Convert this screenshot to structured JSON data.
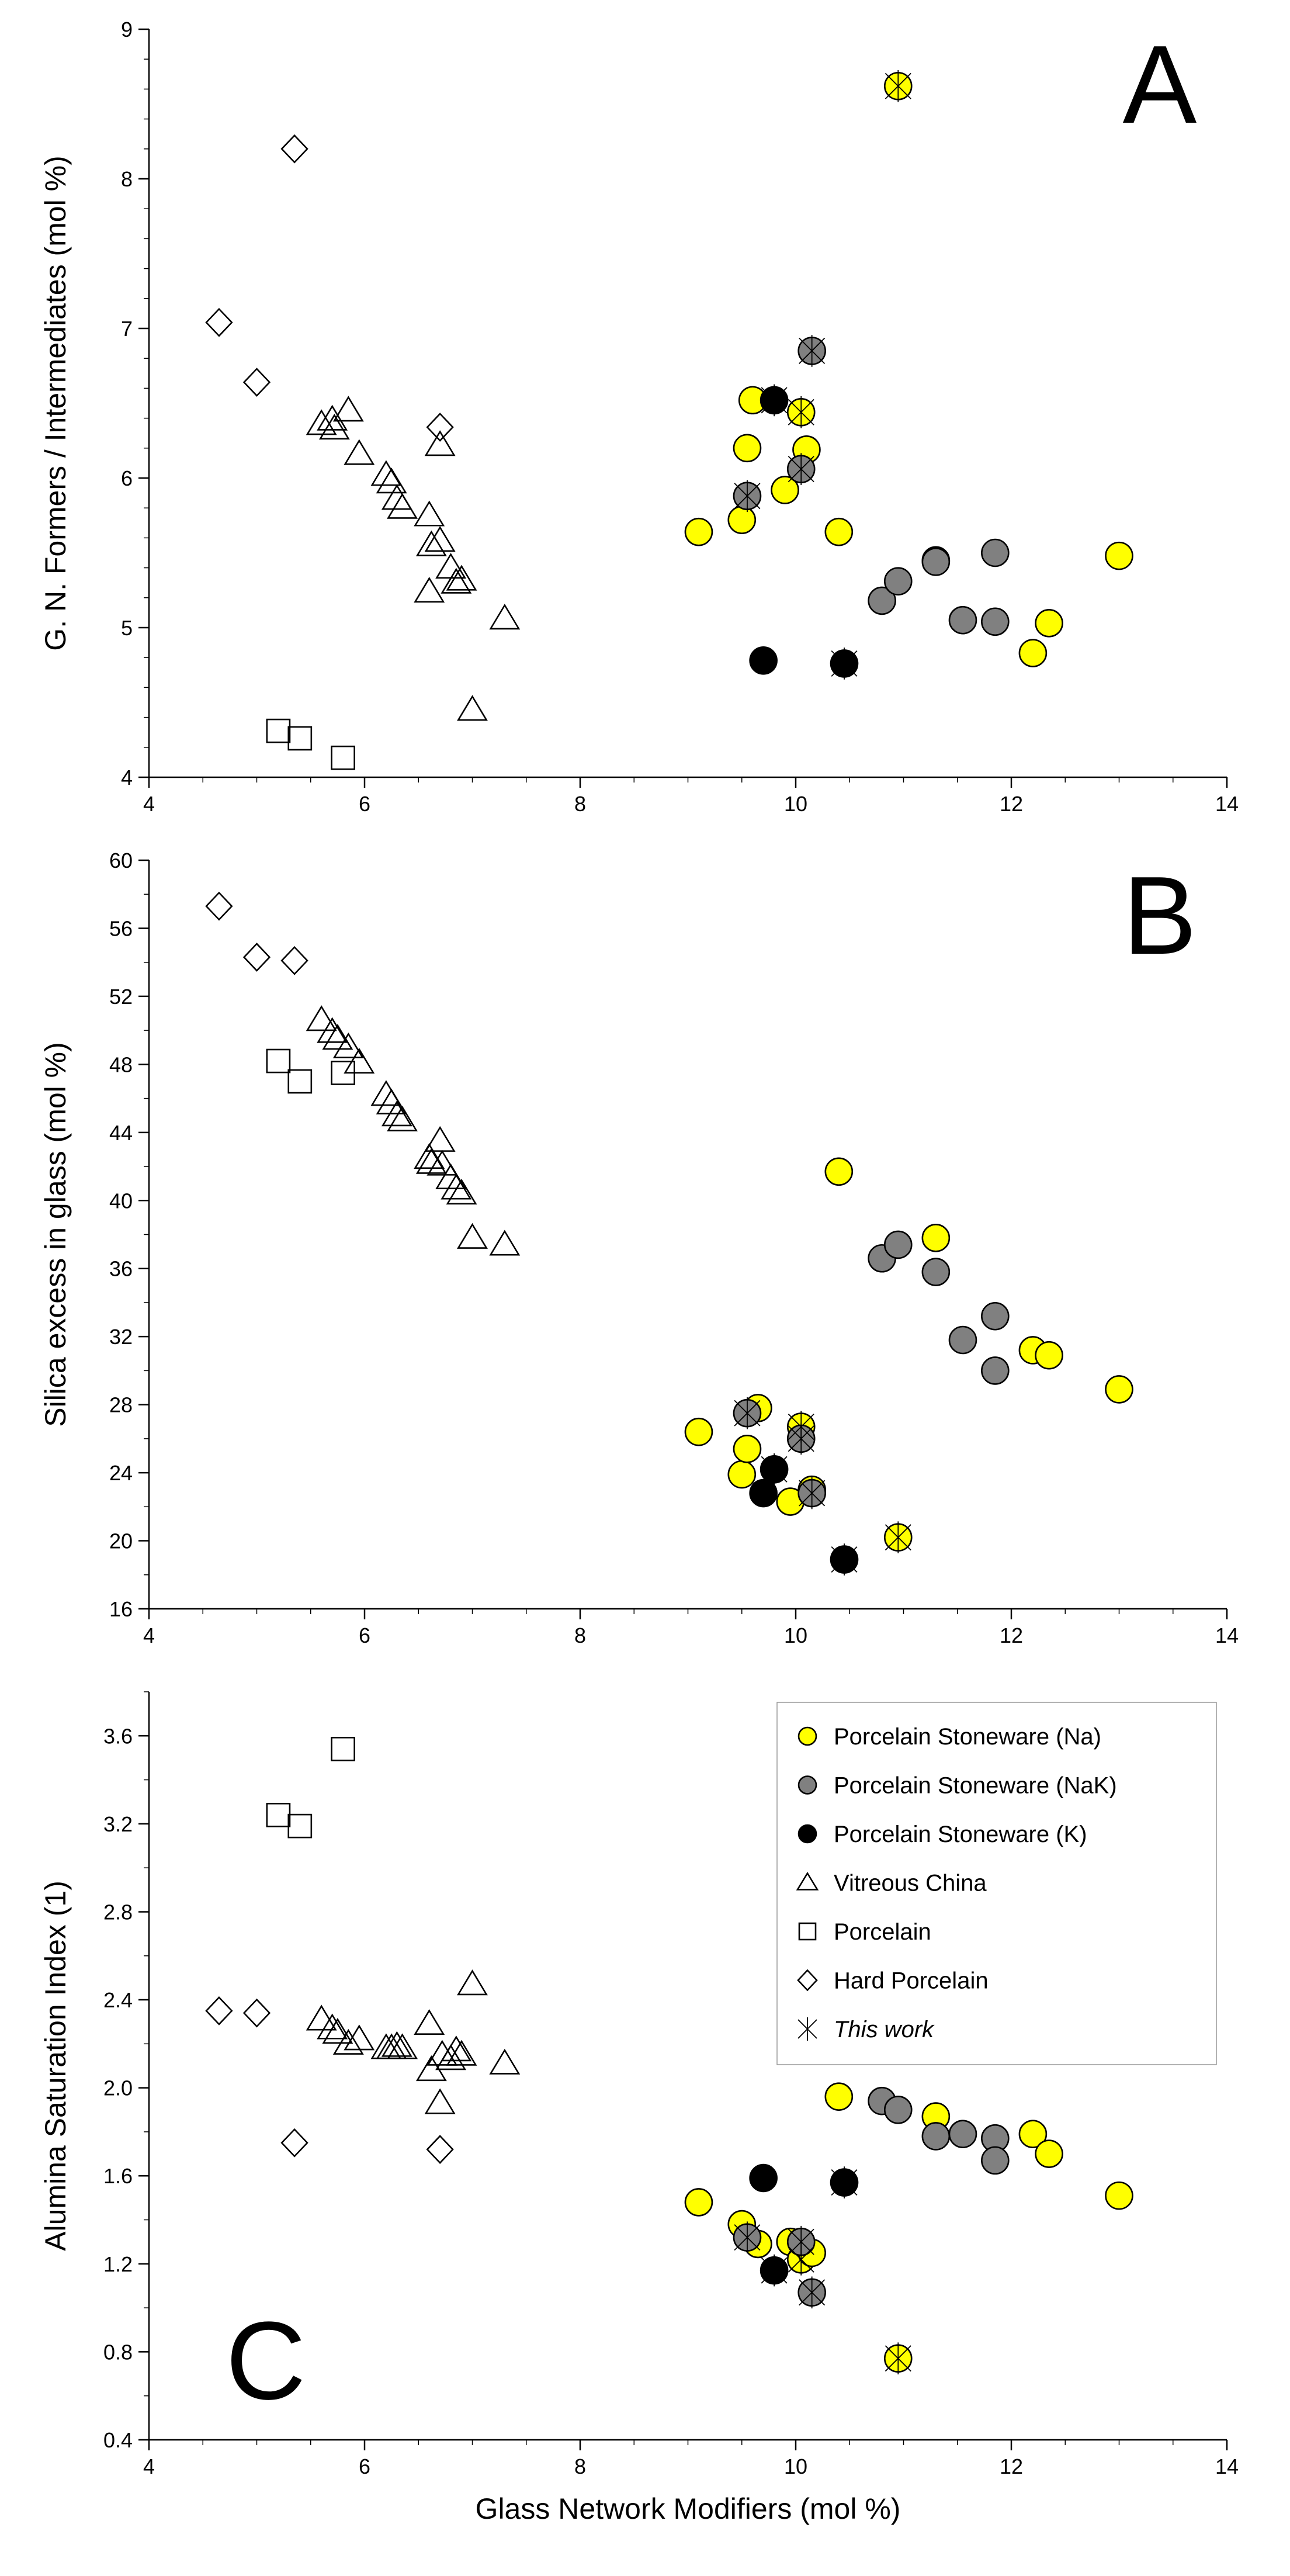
{
  "colors": {
    "porcelain_stoneware_na": "#ffff00",
    "porcelain_stoneware_nak": "#808080",
    "porcelain_stoneware_k": "#000000",
    "hollow": "#ffffff",
    "axis": "#000000"
  },
  "chart_data": [
    {
      "type": "scatter",
      "panel_letter": "A",
      "ylabel": "G. N. Formers / Intermediates (mol %)",
      "xlabel": "",
      "xlim": [
        4,
        14
      ],
      "ylim": [
        4,
        9
      ],
      "x_ticks": [
        "4",
        "6",
        "8",
        "10",
        "12",
        "14"
      ],
      "y_ticks": [
        "4",
        "5",
        "6",
        "7",
        "8",
        "9"
      ],
      "y_minor_step": 0.2,
      "series": [
        {
          "name": "Porcelain Stoneware (Na)",
          "marker": "circle",
          "fill": "#ffff00",
          "points": [
            [
              9.1,
              5.64
            ],
            [
              9.5,
              5.72
            ],
            [
              9.55,
              6.2
            ],
            [
              9.6,
              6.52
            ],
            [
              9.9,
              5.92
            ],
            [
              10.05,
              6.44
            ],
            [
              10.1,
              6.19
            ],
            [
              10.4,
              5.64
            ],
            [
              10.95,
              8.62
            ],
            [
              11.3,
              5.45
            ],
            [
              12.2,
              4.83
            ],
            [
              12.35,
              5.03
            ],
            [
              13.0,
              5.48
            ]
          ]
        },
        {
          "name": "Porcelain Stoneware (NaK)",
          "marker": "circle",
          "fill": "#808080",
          "points": [
            [
              9.55,
              5.88
            ],
            [
              10.05,
              6.06
            ],
            [
              10.15,
              6.85
            ],
            [
              10.8,
              5.18
            ],
            [
              10.95,
              5.31
            ],
            [
              11.3,
              5.44
            ],
            [
              11.55,
              5.05
            ],
            [
              11.85,
              5.04
            ],
            [
              11.85,
              5.5
            ]
          ]
        },
        {
          "name": "Porcelain Stoneware (K)",
          "marker": "circle",
          "fill": "#000000",
          "points": [
            [
              9.7,
              4.78
            ],
            [
              9.8,
              6.52
            ],
            [
              10.45,
              4.76
            ]
          ]
        },
        {
          "name": "Vitreous China",
          "marker": "triangle",
          "fill": "#ffffff",
          "points": [
            [
              5.6,
              6.36
            ],
            [
              5.7,
              6.39
            ],
            [
              5.72,
              6.33
            ],
            [
              5.85,
              6.45
            ],
            [
              5.95,
              6.16
            ],
            [
              6.2,
              6.02
            ],
            [
              6.25,
              5.97
            ],
            [
              6.3,
              5.86
            ],
            [
              6.35,
              5.8
            ],
            [
              6.6,
              5.24
            ],
            [
              6.6,
              5.75
            ],
            [
              6.62,
              5.55
            ],
            [
              6.7,
              6.22
            ],
            [
              6.7,
              5.58
            ],
            [
              6.8,
              5.4
            ],
            [
              6.85,
              5.3
            ],
            [
              6.9,
              5.32
            ],
            [
              7.0,
              4.45
            ],
            [
              7.3,
              5.06
            ]
          ]
        },
        {
          "name": "Porcelain",
          "marker": "square",
          "fill": "#ffffff",
          "points": [
            [
              5.2,
              4.31
            ],
            [
              5.4,
              4.26
            ],
            [
              5.8,
              4.13
            ]
          ]
        },
        {
          "name": "Hard Porcelain",
          "marker": "diamond",
          "fill": "#ffffff",
          "points": [
            [
              4.65,
              7.04
            ],
            [
              5.0,
              6.64
            ],
            [
              5.35,
              8.2
            ],
            [
              6.7,
              6.34
            ]
          ]
        },
        {
          "name": "This work",
          "marker": "star",
          "points": [
            [
              9.55,
              5.88
            ],
            [
              10.05,
              6.06
            ],
            [
              10.15,
              6.85
            ],
            [
              10.05,
              6.44
            ],
            [
              10.95,
              8.62
            ],
            [
              10.45,
              4.76
            ],
            [
              9.8,
              6.52
            ]
          ]
        }
      ]
    },
    {
      "type": "scatter",
      "panel_letter": "B",
      "ylabel": "Silica excess in glass (mol %)",
      "xlabel": "",
      "xlim": [
        4,
        14
      ],
      "ylim": [
        16,
        60
      ],
      "x_ticks": [
        "4",
        "6",
        "8",
        "10",
        "12",
        "14"
      ],
      "y_ticks": [
        "16",
        "20",
        "24",
        "28",
        "32",
        "36",
        "40",
        "44",
        "48",
        "52",
        "56",
        "60"
      ],
      "y_minor_step": 2,
      "series": [
        {
          "name": "Porcelain Stoneware (Na)",
          "marker": "circle",
          "fill": "#ffff00",
          "points": [
            [
              9.1,
              26.4
            ],
            [
              9.5,
              23.9
            ],
            [
              9.55,
              25.4
            ],
            [
              9.65,
              27.8
            ],
            [
              9.95,
              22.3
            ],
            [
              10.05,
              26.7
            ],
            [
              10.15,
              23.0
            ],
            [
              10.4,
              41.7
            ],
            [
              10.95,
              20.2
            ],
            [
              11.3,
              37.8
            ],
            [
              12.2,
              31.2
            ],
            [
              12.35,
              30.9
            ],
            [
              13.0,
              28.9
            ]
          ]
        },
        {
          "name": "Porcelain Stoneware (NaK)",
          "marker": "circle",
          "fill": "#808080",
          "points": [
            [
              9.55,
              27.5
            ],
            [
              10.05,
              26.0
            ],
            [
              10.15,
              22.8
            ],
            [
              10.8,
              36.6
            ],
            [
              10.95,
              37.4
            ],
            [
              11.3,
              35.8
            ],
            [
              11.55,
              31.8
            ],
            [
              11.85,
              30.0
            ],
            [
              11.85,
              33.2
            ]
          ]
        },
        {
          "name": "Porcelain Stoneware (K)",
          "marker": "circle",
          "fill": "#000000",
          "points": [
            [
              9.7,
              22.8
            ],
            [
              9.8,
              24.2
            ],
            [
              10.45,
              18.9
            ]
          ]
        },
        {
          "name": "Vitreous China",
          "marker": "triangle",
          "fill": "#ffffff",
          "points": [
            [
              5.6,
              50.6
            ],
            [
              5.7,
              49.9
            ],
            [
              5.75,
              49.5
            ],
            [
              5.85,
              49.0
            ],
            [
              5.95,
              48.1
            ],
            [
              6.2,
              46.2
            ],
            [
              6.25,
              45.7
            ],
            [
              6.3,
              45.0
            ],
            [
              6.35,
              44.7
            ],
            [
              6.6,
              42.5
            ],
            [
              6.62,
              42.2
            ],
            [
              6.7,
              43.5
            ],
            [
              6.72,
              42.1
            ],
            [
              6.8,
              41.3
            ],
            [
              6.85,
              40.7
            ],
            [
              6.9,
              40.4
            ],
            [
              7.0,
              37.8
            ],
            [
              7.3,
              37.4
            ]
          ]
        },
        {
          "name": "Porcelain",
          "marker": "square",
          "fill": "#ffffff",
          "points": [
            [
              5.2,
              48.2
            ],
            [
              5.4,
              47.0
            ],
            [
              5.8,
              47.5
            ]
          ]
        },
        {
          "name": "Hard Porcelain",
          "marker": "diamond",
          "fill": "#ffffff",
          "points": [
            [
              4.65,
              57.3
            ],
            [
              5.0,
              54.3
            ],
            [
              5.35,
              54.1
            ]
          ]
        },
        {
          "name": "This work",
          "marker": "star",
          "points": [
            [
              9.55,
              27.5
            ],
            [
              10.05,
              26.0
            ],
            [
              10.15,
              22.8
            ],
            [
              10.05,
              26.7
            ],
            [
              10.95,
              20.2
            ],
            [
              10.45,
              18.9
            ],
            [
              9.8,
              24.2
            ]
          ]
        }
      ]
    },
    {
      "type": "scatter",
      "panel_letter": "C",
      "ylabel": "Alumina Saturation Index (1)",
      "xlabel": "Glass Network Modifiers (mol %)",
      "xlim": [
        4,
        14
      ],
      "ylim": [
        0.4,
        3.8
      ],
      "x_ticks": [
        "4",
        "6",
        "8",
        "10",
        "12",
        "14"
      ],
      "y_ticks": [
        "0.4",
        "0.8",
        "1.2",
        "1.6",
        "2.0",
        "2.4",
        "2.8",
        "3.2",
        "3.6"
      ],
      "y_ticks_values": [
        0.4,
        0.8,
        1.2,
        1.6,
        2.0,
        2.4,
        2.8,
        3.2,
        3.6
      ],
      "y_minor_step": 0.2,
      "legend": {
        "position": "top-right",
        "entries": [
          {
            "label": "Porcelain Stoneware (Na)",
            "marker": "circle",
            "fill": "#ffff00"
          },
          {
            "label": "Porcelain Stoneware (NaK)",
            "marker": "circle",
            "fill": "#808080"
          },
          {
            "label": "Porcelain Stoneware (K)",
            "marker": "circle",
            "fill": "#000000"
          },
          {
            "label": "Vitreous China",
            "marker": "triangle",
            "fill": "#ffffff"
          },
          {
            "label": "Porcelain",
            "marker": "square",
            "fill": "#ffffff"
          },
          {
            "label": "Hard Porcelain",
            "marker": "diamond",
            "fill": "#ffffff"
          },
          {
            "label": "This work",
            "marker": "star",
            "fill": "none",
            "italic": true
          }
        ]
      },
      "series": [
        {
          "name": "Porcelain Stoneware (Na)",
          "marker": "circle",
          "fill": "#ffff00",
          "points": [
            [
              9.1,
              1.48
            ],
            [
              9.5,
              1.38
            ],
            [
              9.65,
              1.29
            ],
            [
              9.95,
              1.3
            ],
            [
              10.05,
              1.22
            ],
            [
              10.15,
              1.25
            ],
            [
              10.4,
              1.96
            ],
            [
              10.95,
              0.77
            ],
            [
              11.3,
              1.87
            ],
            [
              12.2,
              1.79
            ],
            [
              12.35,
              1.7
            ],
            [
              13.0,
              1.51
            ]
          ]
        },
        {
          "name": "Porcelain Stoneware (NaK)",
          "marker": "circle",
          "fill": "#808080",
          "points": [
            [
              9.55,
              1.32
            ],
            [
              10.05,
              1.3
            ],
            [
              10.15,
              1.07
            ],
            [
              10.8,
              1.94
            ],
            [
              10.95,
              1.9
            ],
            [
              11.3,
              1.78
            ],
            [
              11.55,
              1.79
            ],
            [
              11.85,
              1.77
            ],
            [
              11.85,
              1.67
            ]
          ]
        },
        {
          "name": "Porcelain Stoneware (K)",
          "marker": "circle",
          "fill": "#000000",
          "points": [
            [
              9.7,
              1.59
            ],
            [
              9.8,
              1.17
            ],
            [
              10.45,
              1.57
            ]
          ]
        },
        {
          "name": "Vitreous China",
          "marker": "triangle",
          "fill": "#ffffff",
          "points": [
            [
              5.6,
              2.31
            ],
            [
              5.7,
              2.27
            ],
            [
              5.75,
              2.25
            ],
            [
              5.85,
              2.2
            ],
            [
              5.95,
              2.22
            ],
            [
              6.2,
              2.18
            ],
            [
              6.25,
              2.18
            ],
            [
              6.3,
              2.19
            ],
            [
              6.35,
              2.18
            ],
            [
              6.6,
              2.29
            ],
            [
              6.62,
              2.08
            ],
            [
              6.7,
              1.93
            ],
            [
              6.72,
              2.15
            ],
            [
              6.8,
              2.13
            ],
            [
              6.85,
              2.17
            ],
            [
              6.9,
              2.15
            ],
            [
              7.0,
              2.47
            ],
            [
              7.3,
              2.11
            ]
          ]
        },
        {
          "name": "Porcelain",
          "marker": "square",
          "fill": "#ffffff",
          "points": [
            [
              5.2,
              3.24
            ],
            [
              5.4,
              3.19
            ],
            [
              5.8,
              3.54
            ]
          ]
        },
        {
          "name": "Hard Porcelain",
          "marker": "diamond",
          "fill": "#ffffff",
          "points": [
            [
              4.65,
              2.35
            ],
            [
              5.0,
              2.34
            ],
            [
              5.35,
              1.75
            ],
            [
              6.7,
              1.72
            ]
          ]
        },
        {
          "name": "This work",
          "marker": "star",
          "points": [
            [
              9.55,
              1.32
            ],
            [
              10.05,
              1.3
            ],
            [
              10.15,
              1.07
            ],
            [
              10.05,
              1.22
            ],
            [
              10.95,
              0.77
            ],
            [
              10.45,
              1.57
            ],
            [
              9.8,
              1.17
            ]
          ]
        }
      ]
    }
  ]
}
